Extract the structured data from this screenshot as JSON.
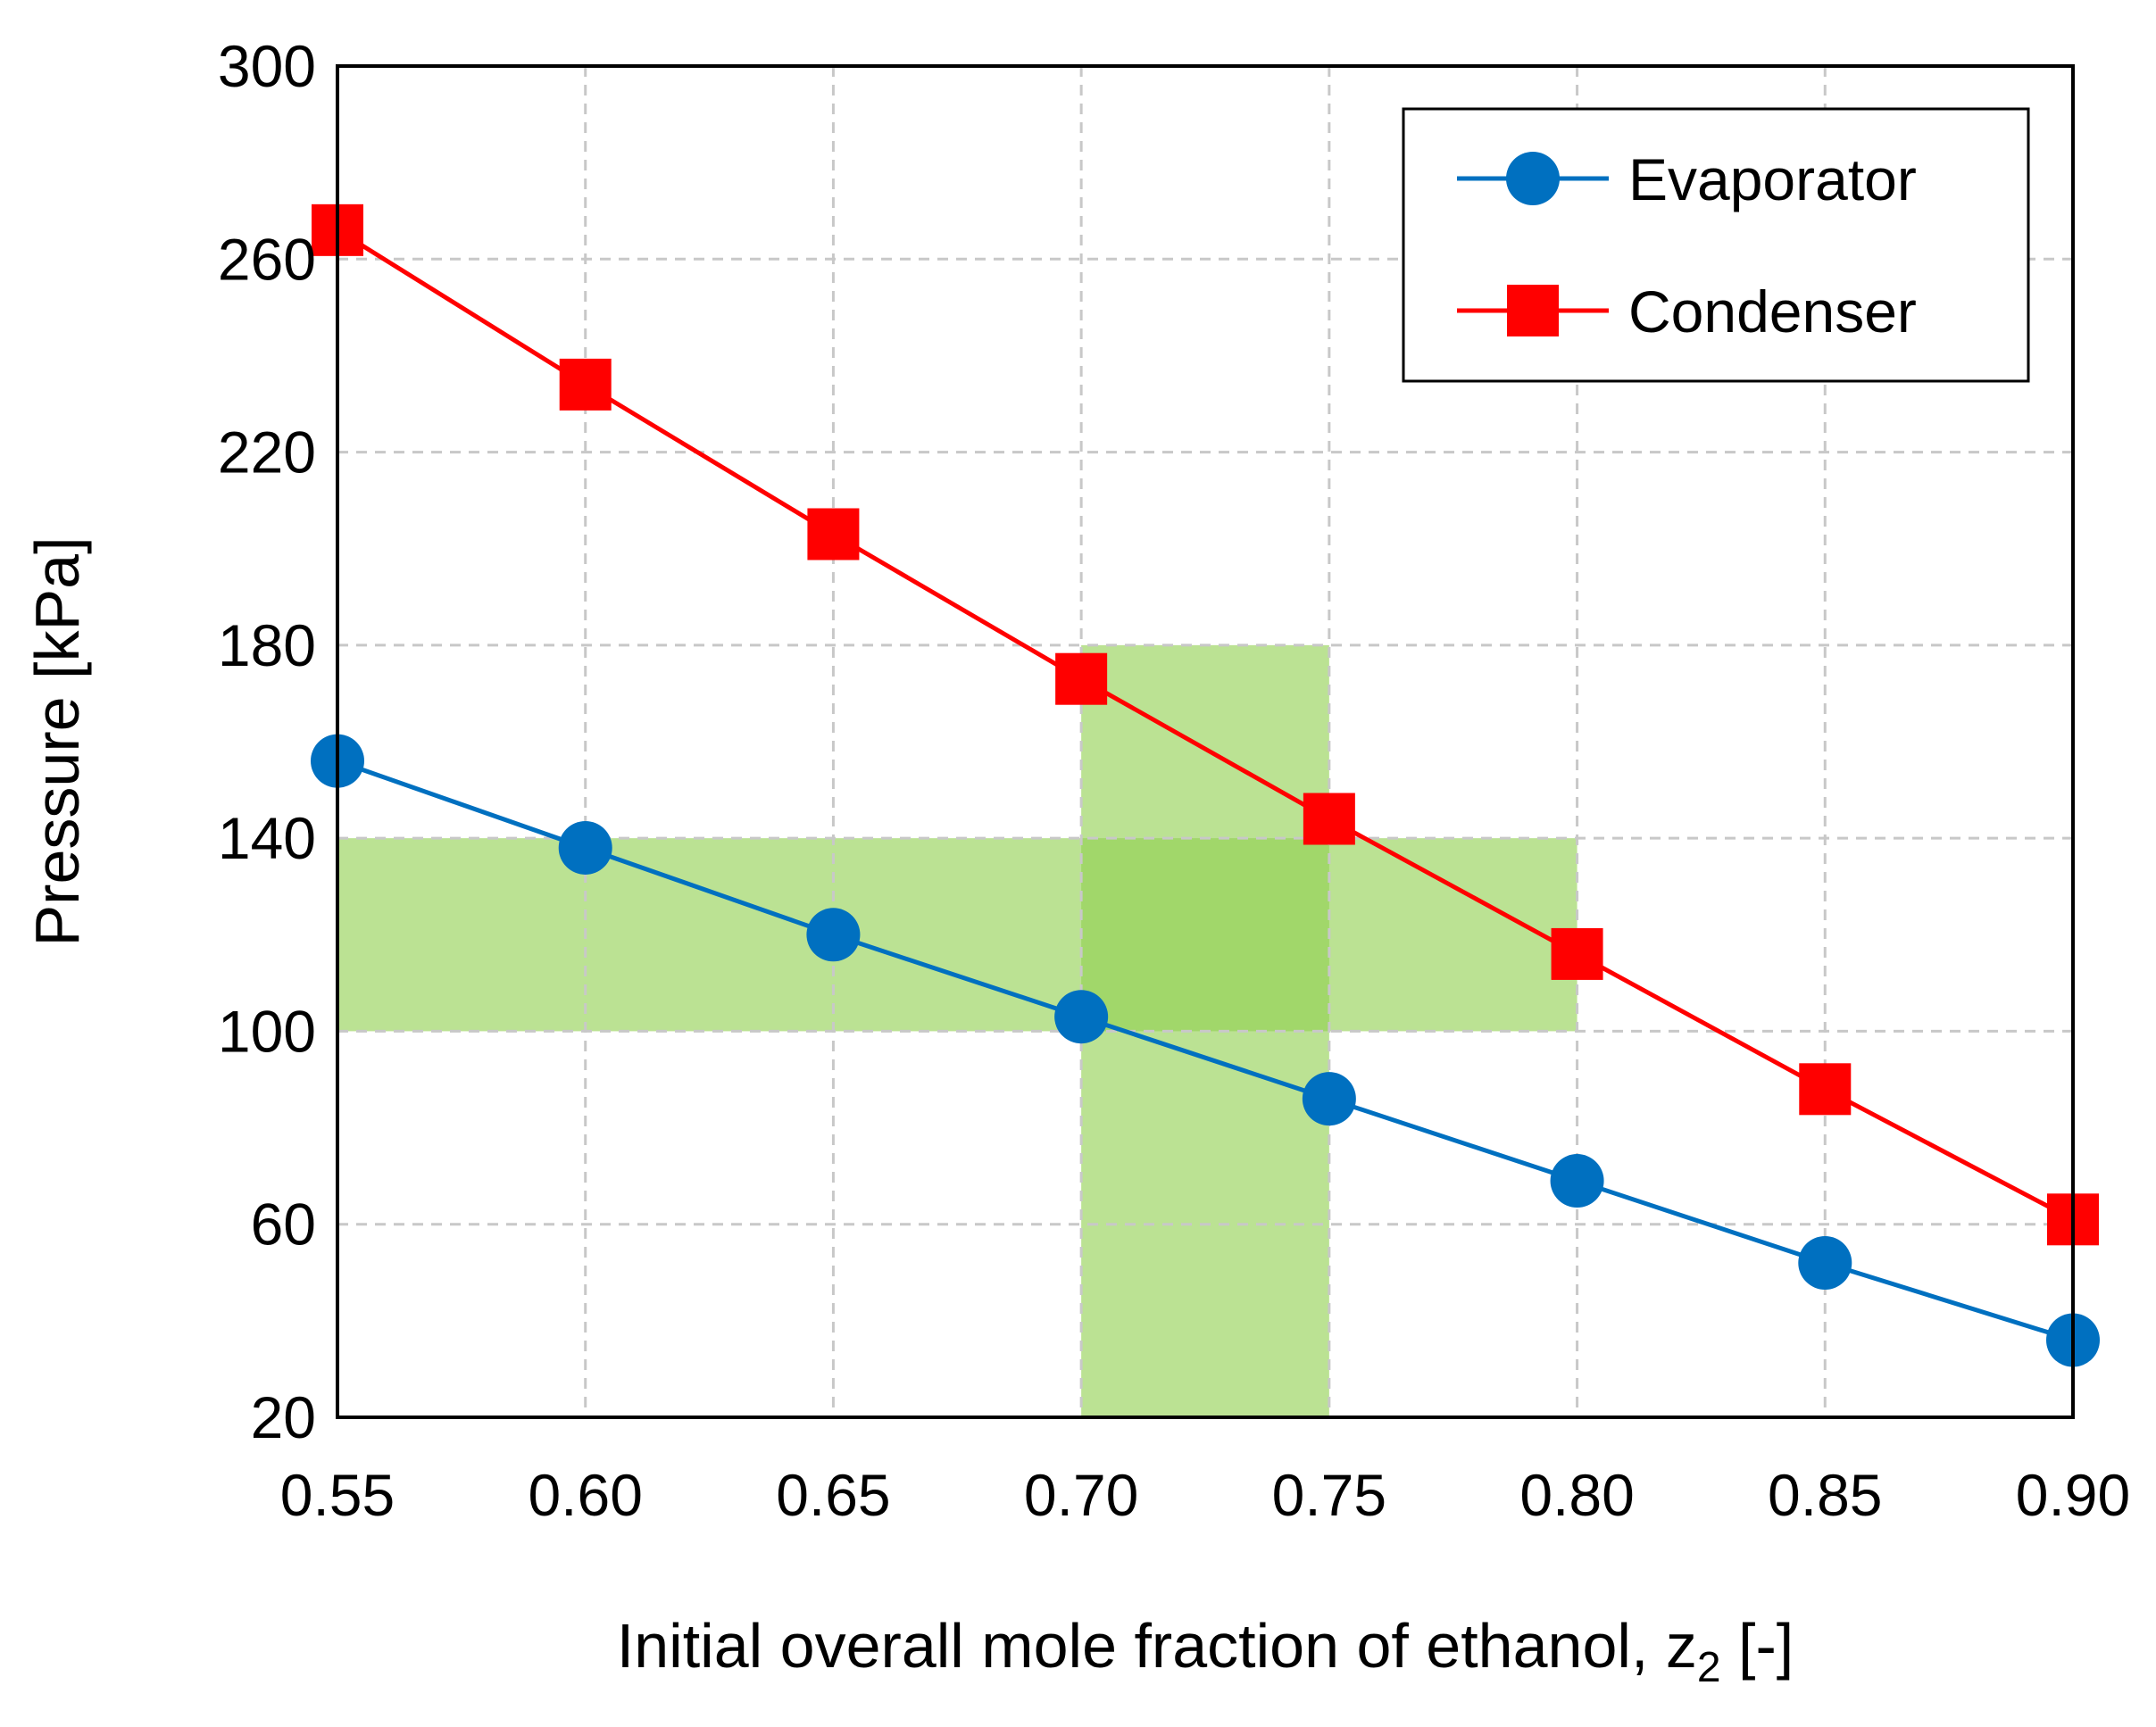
{
  "chart_data": {
    "type": "line",
    "xlabel": "Initial overall mole fraction of ethanol, z",
    "xlabel_sub": "2",
    "xlabel_suffix": " [-]",
    "ylabel": "Pressure [kPa]",
    "xlim": [
      0.55,
      0.9
    ],
    "ylim": [
      20,
      300
    ],
    "x_ticks": [
      "0.55",
      "0.60",
      "0.65",
      "0.70",
      "0.75",
      "0.80",
      "0.85",
      "0.90"
    ],
    "y_ticks": [
      "20",
      "60",
      "100",
      "140",
      "180",
      "220",
      "260",
      "300"
    ],
    "grid": true,
    "legend_position": "top-right",
    "x": [
      0.55,
      0.6,
      0.65,
      0.7,
      0.75,
      0.8,
      0.85,
      0.9
    ],
    "series": [
      {
        "name": "Evaporator",
        "color": "#0070c0",
        "marker": "circle",
        "values": [
          156,
          138,
          120,
          103,
          86,
          69,
          52,
          36
        ]
      },
      {
        "name": "Condenser",
        "color": "#ff0000",
        "marker": "square",
        "values": [
          266,
          234,
          203,
          173,
          144,
          116,
          88,
          61
        ]
      }
    ],
    "highlight_regions": [
      {
        "orientation": "horizontal",
        "x_range": [
          0.55,
          0.8
        ],
        "y_range": [
          100,
          140
        ],
        "color": "#92d050"
      },
      {
        "orientation": "vertical",
        "x_range": [
          0.7,
          0.75
        ],
        "y_range": [
          20,
          180
        ],
        "color": "#92d050"
      }
    ]
  }
}
